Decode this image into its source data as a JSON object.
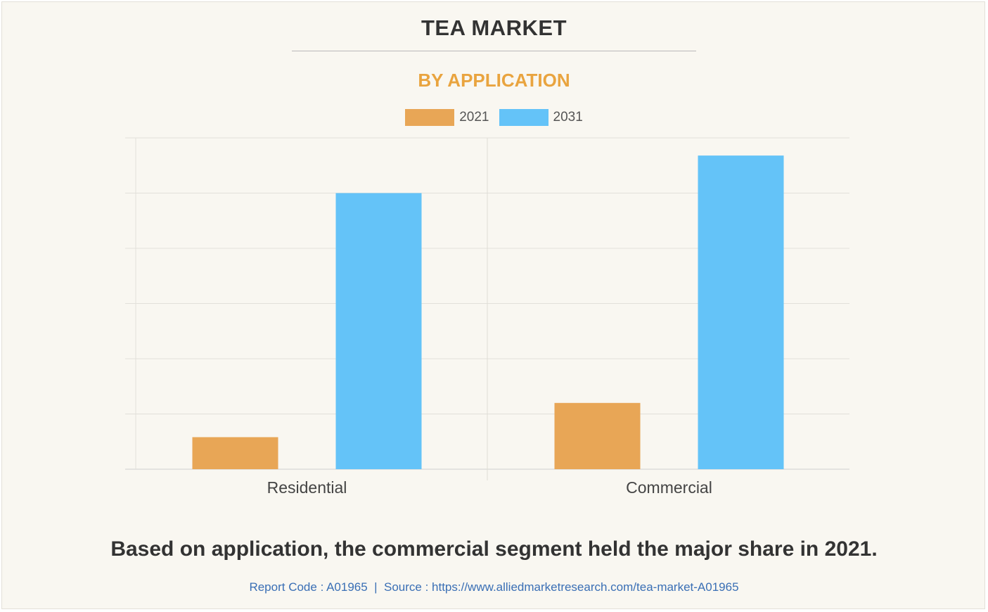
{
  "header": {
    "title": "TEA MARKET",
    "subtitle": "BY APPLICATION"
  },
  "chart_data": {
    "type": "bar",
    "categories": [
      "Residential",
      "Commercial"
    ],
    "series": [
      {
        "name": "2021",
        "color": "#e8a656",
        "values": [
          5.8,
          12.0
        ]
      },
      {
        "name": "2031",
        "color": "#64c3f8",
        "values": [
          50.0,
          56.8
        ]
      }
    ],
    "ylim": [
      0,
      60
    ],
    "gridlines": 6,
    "legend_position": "top-center",
    "xlabel": "",
    "ylabel": ""
  },
  "caption": {
    "text": "Based on application, the commercial segment held the major share in 2021.",
    "source": "Report Code : A01965  |  Source : https://www.alliedmarketresearch.com/tea-market-A01965"
  }
}
